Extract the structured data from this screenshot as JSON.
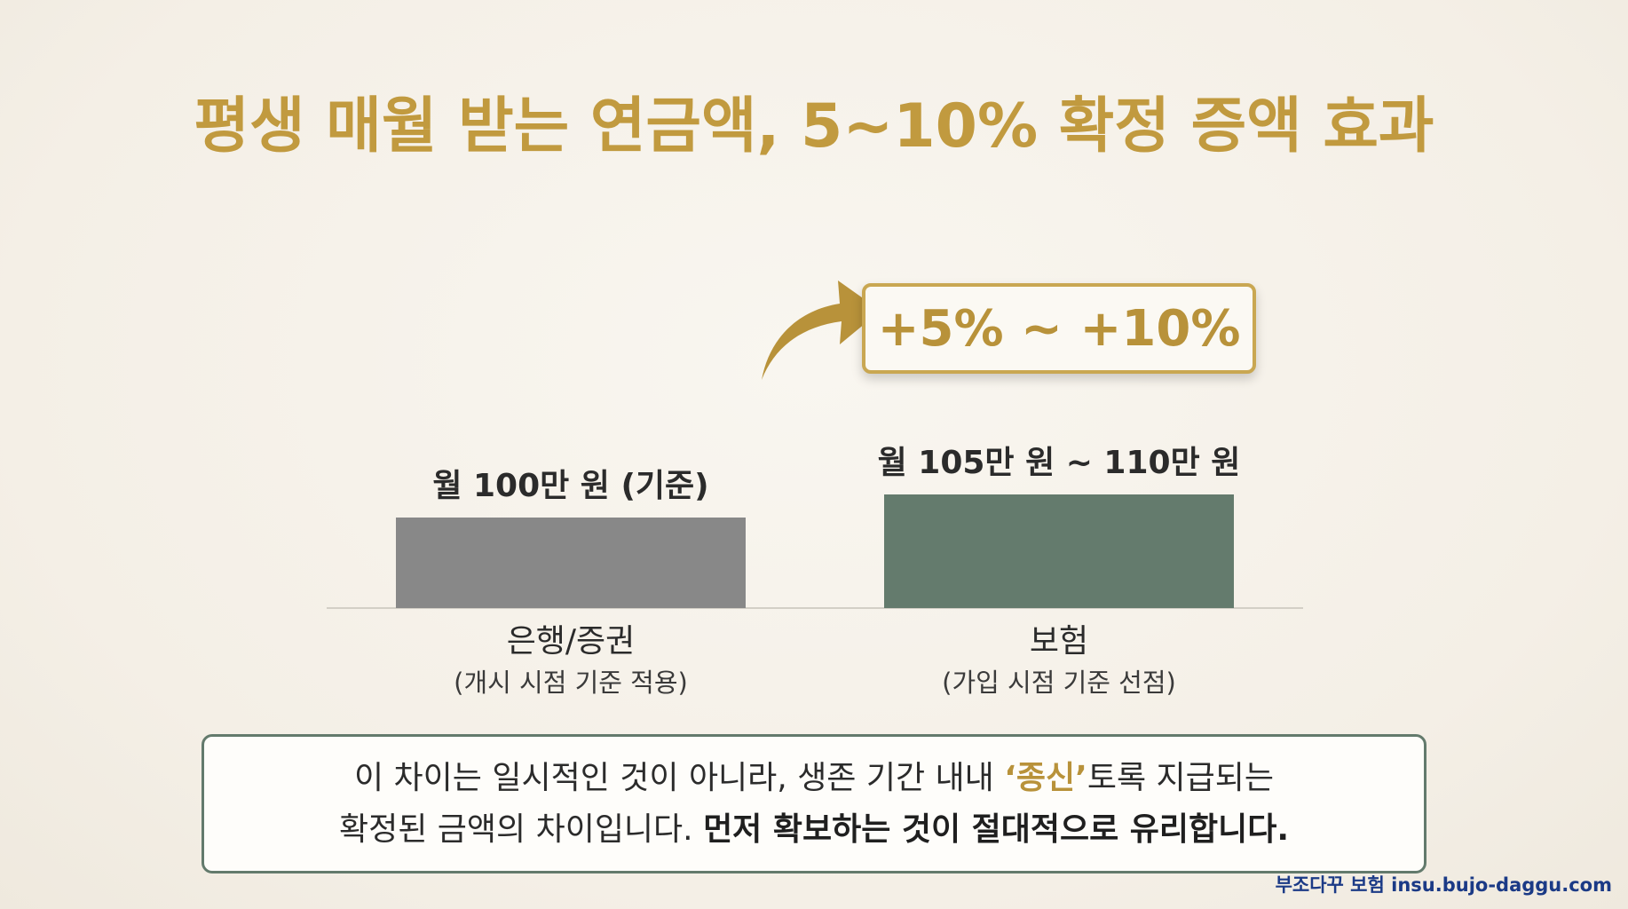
{
  "title": "평생 매월 받는 연금액, 5~10% 확정 증액 효과",
  "chart_data": {
    "type": "bar",
    "categories": [
      "은행/증권",
      "보험"
    ],
    "category_notes": [
      "(개시 시점 기준 적용)",
      "(가입 시점 기준 선점)"
    ],
    "values": [
      100,
      110
    ],
    "value_labels": [
      "월 100만 원 (기준)",
      "월 105만 원 ~ 110만 원"
    ],
    "unit": "만 원",
    "bar_colors": [
      "#888888",
      "#647b6d"
    ],
    "callout": "+5% ~ +10%",
    "title": "평생 매월 받는 연금액, 5~10% 확정 증액 효과"
  },
  "colors": {
    "accent_gold": "#c19a3f",
    "bar_bank": "#888888",
    "bar_insurance": "#647b6d",
    "footer_blue": "#1b3a86"
  },
  "note": {
    "line1_before": "이 차이는 일시적인 것이 아니라, 생존 기간 내내 ",
    "line1_highlight": "‘종신’",
    "line1_after": "토록 지급되는",
    "line2_before": "확정된 금액의 차이입니다. ",
    "line2_bold": "먼저 확보하는 것이 절대적으로 유리합니다."
  },
  "footer": "부조다꾸 보험 insu.bujo-daggu.com"
}
